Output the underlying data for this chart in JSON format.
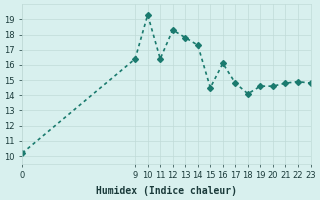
{
  "xlabel": "Humidex (Indice chaleur)",
  "x_values": [
    0,
    9,
    10,
    11,
    12,
    13,
    14,
    15,
    16,
    17,
    18,
    19,
    20,
    21,
    22,
    23
  ],
  "y_values": [
    10.2,
    16.4,
    19.3,
    16.4,
    18.3,
    17.8,
    17.3,
    14.5,
    16.1,
    14.8,
    14.1,
    14.6,
    14.6,
    14.8,
    14.9,
    14.8
  ],
  "line_color": "#1a7a6e",
  "bg_color": "#d8f0ee",
  "grid_color": "#c0dbd8",
  "minor_grid_color": "#c8e6e4",
  "ylim": [
    9.5,
    20
  ],
  "xlim": [
    0,
    23
  ],
  "yticks": [
    10,
    11,
    12,
    13,
    14,
    15,
    16,
    17,
    18,
    19
  ],
  "xticks": [
    0,
    9,
    10,
    11,
    12,
    13,
    14,
    15,
    16,
    17,
    18,
    19,
    20,
    21,
    22,
    23
  ],
  "marker": "D",
  "marker_size": 3,
  "linewidth": 1.2,
  "font_color": "#1a3a3a",
  "xlabel_fontsize": 7,
  "tick_fontsize": 6
}
